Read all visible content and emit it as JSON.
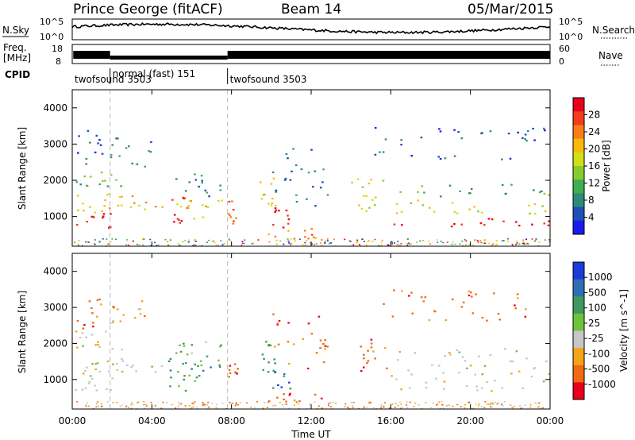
{
  "header": {
    "station": "Prince George (fitACF)",
    "beam": "Beam 14",
    "date": "05/Mar/2015"
  },
  "panels": {
    "nsky_label": "N.Sky",
    "nsky_ticks": [
      "10^5",
      "10^0"
    ],
    "nsearch_label": "N.Search",
    "nsearch_ticks": [
      "10^5",
      "10^0"
    ],
    "freq_label_1": "Freq.",
    "freq_label_2": "[MHz]",
    "freq_ticks": [
      "18",
      "8"
    ],
    "nave_label": "Nave",
    "nave_ticks": [
      "60",
      "0"
    ],
    "cpid_label": "CPID",
    "cpid_segments": [
      {
        "label": "twofsound 3503",
        "start_hour": 0.0,
        "end_hour": 1.9
      },
      {
        "label": "normal (fast) 151",
        "start_hour": 1.9,
        "end_hour": 7.8
      },
      {
        "label": "twofsound 3503",
        "start_hour": 7.8,
        "end_hour": 24.0
      }
    ]
  },
  "axes": {
    "ylabel": "Slant Range [km]",
    "xlabel": "Time UT",
    "x_ticks": [
      "00:00",
      "04:00",
      "08:00",
      "12:00",
      "16:00",
      "20:00",
      "00:00"
    ],
    "y_ticks": [
      "1000",
      "2000",
      "3000",
      "4000"
    ]
  },
  "colorbars": {
    "power_label": "Power [dB]",
    "power_ticks": [
      "28",
      "24",
      "20",
      "16",
      "12",
      "8",
      "4"
    ],
    "power_colors": [
      "#e8001c",
      "#f53b1b",
      "#fb7d18",
      "#f7b90c",
      "#cfe016",
      "#86cc2f",
      "#3fae52",
      "#2c8a78",
      "#1d4fb4",
      "#1a1af0"
    ],
    "velocity_label": "Velocity [m s^-1]",
    "velocity_ticks": [
      "1000",
      "500",
      "100",
      "25",
      "-25",
      "-100",
      "-500",
      "-1000"
    ],
    "velocity_colors": [
      "#1a3cd8",
      "#2e6fb6",
      "#3d9a5a",
      "#6fc23c",
      "#c6c6c6",
      "#f5a31a",
      "#f06a14",
      "#e8001c"
    ]
  },
  "chart_data": {
    "type": "heatmap",
    "x_range_hours": [
      0,
      24
    ],
    "y_range_km": [
      180,
      4500
    ],
    "gridlines": false,
    "scatter_regions": [
      {
        "t0": 0.1,
        "t1": 2.0,
        "r0": 700,
        "r1": 1100,
        "level": 9,
        "vel": 4
      },
      {
        "t0": 0.1,
        "t1": 2.5,
        "r0": 1100,
        "r1": 1700,
        "level": 6,
        "vel": 4
      },
      {
        "t0": 0.1,
        "t1": 2.5,
        "r0": 1700,
        "r1": 2400,
        "level": 3,
        "vel": 4
      },
      {
        "t0": 0.2,
        "t1": 1.5,
        "r0": 2400,
        "r1": 3400,
        "level": 1,
        "vel": 6
      },
      {
        "t0": 1.8,
        "t1": 4.0,
        "r0": 2400,
        "r1": 3200,
        "level": 2,
        "vel": 5
      },
      {
        "t0": 2.0,
        "t1": 4.6,
        "r0": 1200,
        "r1": 1600,
        "level": 6,
        "vel": 4
      },
      {
        "t0": 4.8,
        "t1": 5.8,
        "r0": 700,
        "r1": 1600,
        "level": 9,
        "vel": 2
      },
      {
        "t0": 5.2,
        "t1": 7.7,
        "r0": 900,
        "r1": 1500,
        "level": 6,
        "vel": 2
      },
      {
        "t0": 5.0,
        "t1": 7.5,
        "r0": 1500,
        "r1": 2200,
        "level": 2,
        "vel": 3
      },
      {
        "t0": 7.8,
        "t1": 8.3,
        "r0": 800,
        "r1": 1500,
        "level": 7,
        "vel": 6
      },
      {
        "t0": 9.3,
        "t1": 10.2,
        "r0": 1200,
        "r1": 2100,
        "level": 5,
        "vel": 2
      },
      {
        "t0": 10.0,
        "t1": 11.0,
        "r0": 700,
        "r1": 1300,
        "level": 9,
        "vel": 1
      },
      {
        "t0": 9.8,
        "t1": 12.5,
        "r0": 400,
        "r1": 700,
        "level": 7,
        "vel": 6
      },
      {
        "t0": 10.0,
        "t1": 13.0,
        "r0": 1300,
        "r1": 2900,
        "level": 2,
        "vel": 6
      },
      {
        "t0": 14.0,
        "t1": 16.0,
        "r0": 1100,
        "r1": 2200,
        "level": 5,
        "vel": 6
      },
      {
        "t0": 16.0,
        "t1": 24.0,
        "r0": 700,
        "r1": 1000,
        "level": 9,
        "vel": 4
      },
      {
        "t0": 16.0,
        "t1": 24.0,
        "r0": 1000,
        "r1": 1500,
        "level": 5,
        "vel": 4
      },
      {
        "t0": 16.0,
        "t1": 24.0,
        "r0": 1500,
        "r1": 1900,
        "level": 3,
        "vel": 4
      },
      {
        "t0": 15.0,
        "t1": 23.8,
        "r0": 2600,
        "r1": 3500,
        "level": 1,
        "vel": 6
      }
    ]
  }
}
